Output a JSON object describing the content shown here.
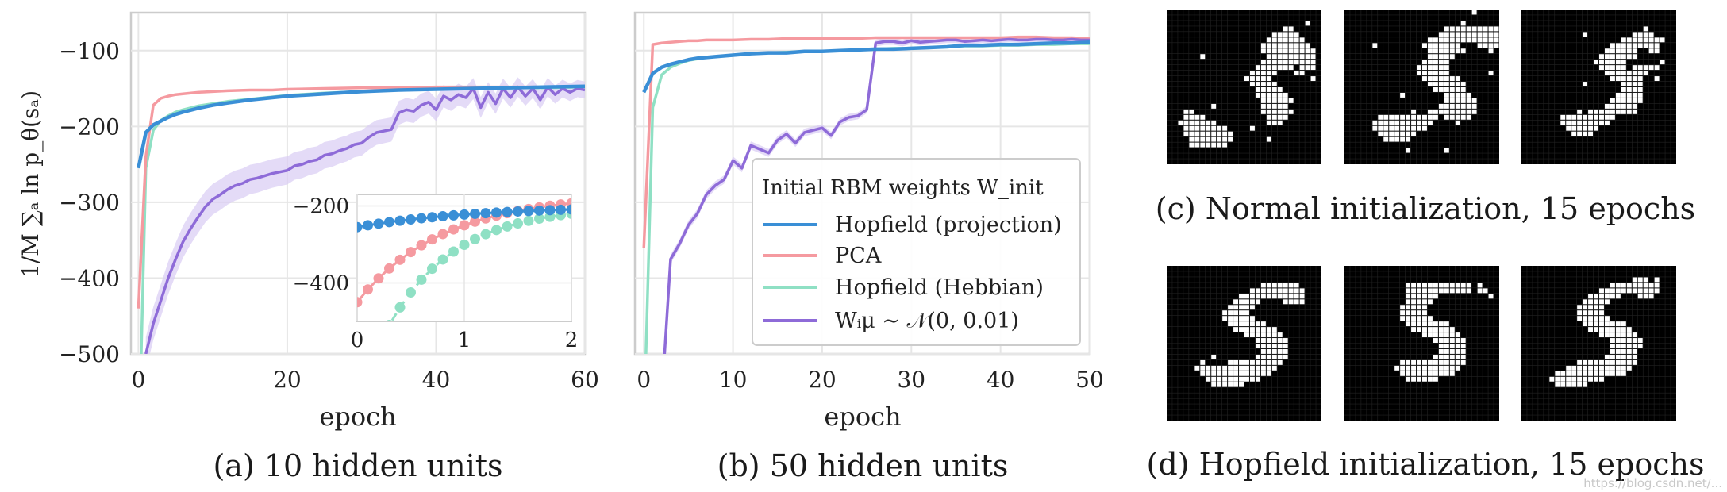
{
  "colors": {
    "hopfield_projection": "#3a8fd6",
    "pca": "#f59aa0",
    "hopfield_hebbian": "#8fe0c4",
    "random": "#8e6bd8",
    "random_band": "#d9ccf3",
    "grid": "#e6e6e6",
    "frame": "#cccccc",
    "pixel_on": "#ffffff",
    "pixel_off": "#000000"
  },
  "ylabel": "1/M ∑ₐ ln p_θ(sₐ)",
  "legend": {
    "title": "Initial RBM weights W_init",
    "entries": [
      "Hopfield (projection)",
      "PCA",
      "Hopfield (Hebbian)",
      "Wᵢμ ∼ 𝒩(0, 0.01)"
    ]
  },
  "captions": {
    "a": "(a) 10 hidden units",
    "b": "(b) 50 hidden units",
    "c": "(c) Normal initialization, 15 epochs",
    "d": "(d) Hopfield initialization, 15 epochs"
  },
  "watermark": "https://blog.csdn.net/...",
  "chart_data": [
    {
      "id": "a",
      "type": "line",
      "xlabel": "epoch",
      "ylabel": "1/M ∑ₐ ln p_θ(sₐ)",
      "xlim": [
        -1,
        60
      ],
      "ylim": [
        -500,
        -50
      ],
      "xticks": [
        0,
        20,
        40,
        60
      ],
      "yticks": [
        -100,
        -200,
        -300,
        -400,
        -500
      ],
      "grid": true,
      "series": [
        {
          "name": "Hopfield (projection)",
          "x": [
            0,
            1,
            2,
            3,
            4,
            5,
            6,
            8,
            10,
            12,
            15,
            18,
            20,
            25,
            30,
            35,
            40,
            45,
            50,
            55,
            60
          ],
          "y": [
            -255,
            -208,
            -198,
            -193,
            -188,
            -184,
            -181,
            -176,
            -172,
            -169,
            -165,
            -162,
            -160,
            -157,
            -154,
            -152,
            -151,
            -150,
            -149,
            -148,
            -147
          ]
        },
        {
          "name": "PCA",
          "x": [
            0,
            1,
            2,
            3,
            4,
            5,
            6,
            8,
            10,
            12,
            15,
            18,
            20,
            25,
            30,
            35,
            40,
            45,
            50,
            55,
            60
          ],
          "y": [
            -440,
            -240,
            -172,
            -163,
            -160,
            -158,
            -157,
            -155,
            -154,
            -153,
            -152,
            -152,
            -151,
            -150,
            -149,
            -149,
            -148,
            -148,
            -148,
            -148,
            -147
          ]
        },
        {
          "name": "Hopfield (Hebbian)",
          "x": [
            0,
            1,
            2,
            3,
            4,
            5,
            6,
            8,
            10,
            12,
            15,
            18,
            20,
            25,
            30,
            35,
            40,
            45,
            50,
            55,
            60
          ],
          "y": [
            -650,
            -255,
            -205,
            -192,
            -186,
            -181,
            -178,
            -173,
            -170,
            -167,
            -164,
            -161,
            -159,
            -156,
            -154,
            -152,
            -151,
            -150,
            -149,
            -149,
            -148
          ]
        },
        {
          "name": "Wᵢμ ∼ 𝒩(0, 0.01)",
          "x": [
            1,
            2,
            3,
            4,
            5,
            6,
            7,
            8,
            9,
            10,
            11,
            12,
            13,
            14,
            15,
            16,
            17,
            18,
            19,
            20,
            21,
            22,
            23,
            24,
            25,
            26,
            27,
            28,
            29,
            30,
            31,
            32,
            33,
            34,
            35,
            36,
            37,
            38,
            39,
            40,
            41,
            42,
            43,
            44,
            45,
            46,
            47,
            48,
            49,
            50,
            51,
            52,
            53,
            54,
            55,
            56,
            57,
            58,
            59,
            60
          ],
          "y": [
            -500,
            -460,
            -430,
            -400,
            -375,
            -352,
            -335,
            -320,
            -306,
            -296,
            -290,
            -283,
            -278,
            -275,
            -270,
            -268,
            -265,
            -262,
            -260,
            -258,
            -252,
            -250,
            -246,
            -244,
            -238,
            -236,
            -232,
            -229,
            -224,
            -222,
            -214,
            -208,
            -206,
            -204,
            -182,
            -178,
            -180,
            -172,
            -168,
            -178,
            -160,
            -165,
            -158,
            -162,
            -150,
            -175,
            -155,
            -170,
            -150,
            -162,
            -148,
            -160,
            -150,
            -165,
            -148,
            -158,
            -150,
            -155,
            -150,
            -152
          ],
          "band": 22
        }
      ],
      "inset": {
        "xlim": [
          0,
          2
        ],
        "ylim": [
          -500,
          -170
        ],
        "xticks": [
          0,
          1,
          2
        ],
        "yticks": [
          -200,
          -400
        ],
        "marker": "dot"
      }
    },
    {
      "id": "b",
      "type": "line",
      "xlabel": "epoch",
      "xlim": [
        -1,
        50
      ],
      "ylim": [
        -500,
        -50
      ],
      "xticks": [
        0,
        10,
        20,
        30,
        40,
        50
      ],
      "yticks": [
        -100,
        -200,
        -300,
        -400,
        -500
      ],
      "grid": true,
      "legend_position": "center-right",
      "series": [
        {
          "name": "Hopfield (projection)",
          "x": [
            0,
            1,
            2,
            3,
            4,
            5,
            6,
            7,
            8,
            10,
            12,
            14,
            16,
            18,
            20,
            22,
            24,
            26,
            28,
            30,
            32,
            34,
            36,
            38,
            40,
            42,
            44,
            46,
            48,
            50
          ],
          "y": [
            -155,
            -130,
            -122,
            -118,
            -115,
            -112,
            -110,
            -109,
            -108,
            -106,
            -104,
            -103,
            -103,
            -101,
            -101,
            -100,
            -99,
            -98,
            -98,
            -97,
            -96,
            -95,
            -93,
            -93,
            -92,
            -92,
            -91,
            -90,
            -90,
            -89
          ]
        },
        {
          "name": "PCA",
          "x": [
            0,
            1,
            2,
            3,
            4,
            5,
            6,
            7,
            8,
            10,
            12,
            14,
            16,
            18,
            20,
            22,
            24,
            26,
            28,
            30,
            32,
            34,
            36,
            38,
            40,
            42,
            44,
            46,
            48,
            50
          ],
          "y": [
            -360,
            -92,
            -90,
            -89,
            -88,
            -87,
            -87,
            -86,
            -86,
            -86,
            -85,
            -85,
            -84,
            -84,
            -84,
            -84,
            -84,
            -83,
            -83,
            -83,
            -83,
            -83,
            -83,
            -83,
            -83,
            -82,
            -82,
            -83,
            -83,
            -84
          ]
        },
        {
          "name": "Hopfield (Hebbian)",
          "x": [
            0,
            1,
            2,
            3,
            4,
            5,
            6,
            7,
            8,
            10,
            12,
            14,
            16,
            18,
            20,
            22,
            24,
            26,
            28,
            30,
            32,
            34,
            36,
            38,
            40,
            42,
            44,
            46,
            48,
            50
          ],
          "y": [
            -600,
            -175,
            -132,
            -122,
            -117,
            -113,
            -111,
            -109,
            -108,
            -106,
            -104,
            -103,
            -102,
            -101,
            -101,
            -100,
            -99,
            -98,
            -97,
            -97,
            -96,
            -95,
            -94,
            -94,
            -93,
            -93,
            -92,
            -92,
            -91,
            -91
          ]
        },
        {
          "name": "Wᵢμ ∼ 𝒩(0, 0.01)",
          "x": [
            2,
            3,
            4,
            5,
            6,
            7,
            8,
            9,
            10,
            11,
            12,
            13,
            14,
            15,
            16,
            17,
            18,
            19,
            20,
            21,
            22,
            23,
            24,
            25,
            26,
            27,
            28,
            29,
            30,
            31,
            32,
            33,
            34,
            35,
            36,
            37,
            38,
            39,
            40,
            41,
            42,
            43,
            44,
            45,
            46,
            47,
            48,
            49,
            50
          ],
          "y": [
            -560,
            -375,
            -355,
            -330,
            -315,
            -290,
            -278,
            -270,
            -245,
            -255,
            -225,
            -230,
            -235,
            -218,
            -210,
            -222,
            -208,
            -205,
            -202,
            -212,
            -194,
            -188,
            -186,
            -178,
            -90,
            -88,
            -88,
            -90,
            -87,
            -89,
            -88,
            -87,
            -86,
            -86,
            -88,
            -87,
            -86,
            -87,
            -86,
            -85,
            -86,
            -86,
            -85,
            -85,
            -86,
            -86,
            -85,
            -86,
            -86
          ],
          "band": 6
        }
      ]
    }
  ],
  "digits": {
    "normal": [
      [
        "..............................",
        "..............................",
        ".........................#....",
        ".....................##.......",
        "...................#####......",
        "..................#######.....",
        ".................#########....",
        ".................##########...",
        "......#...........#########...",
        ".................##########...",
        "................#######.###...",
        "...............#####...##.....",
        "..............#####.......#...",
        "...............#####..........",
        "................#####.........",
        "................######........",
        ".................######.......",
        "........#........#####........",
        "...##............######.......",
        "...####...........####........",
        "..#######.........###.........",
        "...########....#..............",
        "...#########..................",
        "....########......#...........",
        "....#######...................",
        "..............................",
        "..............................",
        ".............................."
      ],
      [
        ".......................#......",
        "..............................",
        ".....................#........",
        "..................##########..",
        ".................###########..",
        "...............##############.",
        ".....#........#######...####..",
        "...............#######....#...",
        "...............#####..........",
        "..............#####...........",
        ".............######...........",
        ".............######.......#...",
        "..............#######.........",
        "...............#######........",
        "................######........",
        "..........#.......#####.......",
        "..................######......",
        ".................#######......",
        "............#..#########......",
        "......###########.#####.......",
        ".....###########....#.........",
        ".....##########...............",
        "......#######.................",
        ".......#####..................",
        "..............................",
        "...........#......#...........",
        "..............................",
        ".............................."
      ],
      [
        "..............................",
        "..............................",
        "..............................",
        "......................#.......",
        "...........#........####......",
        "..................########....",
        "................#########.....",
        "...............######..##.....",
        "..............#######.........",
        ".............######......#....",
        "..............#####.#####.....",
        "...............########.......",
        "................######..#.....",
        "...........#......####........",
        "..................####........",
        ".................#####........",
        "................######........",
        "...............######.........",
        "..........#.#########.........",
        ".......##########.............",
        ".......#########..............",
        "........######................",
        ".........####.................",
        "..............................",
        "..............................",
        "..............................",
        "..............................",
        ".............................."
      ]
    ],
    "hopfield": [
      [
        "..............................",
        "..............................",
        "..............................",
        ".................#######......",
        "...............##########.....",
        ".............############.....",
        "............#####....####.....",
        "...........#####..............",
        "..........#####...............",
        "..........######..............",
        "...........#######............",
        "............########..........",
        "..............#######.........",
        "................######........",
        "................######........",
        ".................#####........",
        "........#.......######........",
        "......#....##########.........",
        ".....###############..........",
        "......#############...........",
        ".......##########.............",
        "........######................",
        "..............................",
        "..............................",
        "..............................",
        "..............................",
        "..............................",
        ".............................."
      ],
      [
        "..............................",
        "..............................",
        "..............................",
        "...........############.#.....",
        "...........############.##....",
        "...........######.........#...",
        "...........#####..............",
        "..........#####...............",
        "..........#####...............",
        "..........######..............",
        "...........########...........",
        "............########..........",
        "..............#######.........",
        "................######........",
        ".................#####........",
        ".................#####........",
        "................######........",
        "..........############........",
        ".........############.........",
        "..........##########..........",
        "...........######.............",
        "..............................",
        "..............................",
        "..............................",
        "..............................",
        "..............................",
        "..............................",
        ".............................."
      ],
      [
        "..............................",
        "..............................",
        "....................###.#.....",
        "................#########.....",
        "..............###########.....",
        "............######...###......",
        "...........#####..............",
        "..........#####...............",
        "..........#####...............",
        "..........######..............",
        "...........########...........",
        "............########..........",
        "..............#######.........",
        "................######........",
        "................######........",
        "................#####.........",
        "...............######.........",
        "..........###########.........",
        "........############..........",
        "......#############...........",
        ".....##########...............",
        "......######..................",
        "..............................",
        "..............................",
        "..............................",
        "..............................",
        "..............................",
        ".............................."
      ]
    ]
  }
}
